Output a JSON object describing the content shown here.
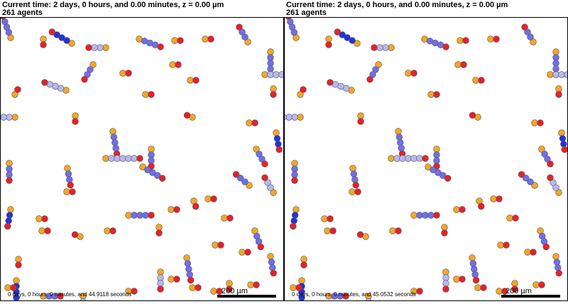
{
  "left": {
    "time_label": "Current time: 2 days, 0 hours, and 0.00 minutes, z = 0.00 µm",
    "agent_count": "261 agents",
    "elapsed": "0 days, 0 hours, 0 minutes, and 44.9118 seconds",
    "scale_label": "200 µm"
  },
  "right": {
    "time_label": "Current time: 2 days, 0 hours, and 0.00 minutes, z = 0.00 µm",
    "agent_count": "261 agents",
    "elapsed": "0 days, 0 hours, 0 minutes, and 45.0532 seconds",
    "scale_label": "200 µm"
  },
  "colors": {
    "red": "#e8202a",
    "orange": "#f5a623",
    "blue_dark": "#2233dd",
    "blue_mid": "#6f6fe8",
    "blue_light": "#b8b8f0",
    "outline": "#555555"
  }
}
